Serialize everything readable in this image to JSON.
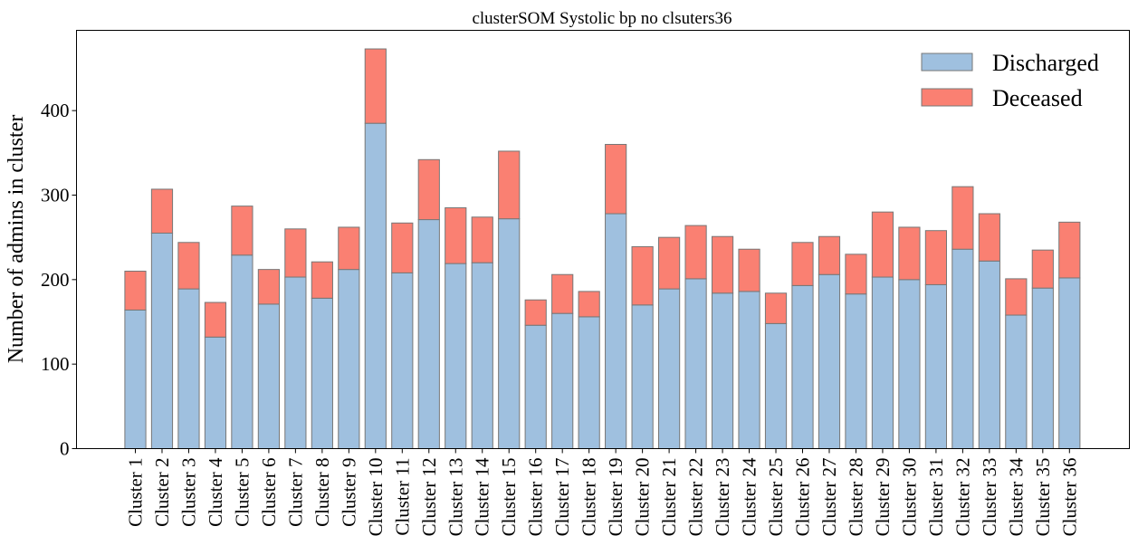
{
  "chart_data": {
    "type": "bar",
    "stacked": true,
    "title": "clusterSOM Systolic bp no clsuters36",
    "xlabel": "",
    "ylabel": "Number of admins in cluster",
    "ylim": [
      0,
      495
    ],
    "yticks": [
      0,
      100,
      200,
      300,
      400
    ],
    "grid": false,
    "legend_position": "top-right",
    "categories": [
      "Cluster 1",
      "Cluster 2",
      "Cluster 3",
      "Cluster 4",
      "Cluster 5",
      "Cluster 6",
      "Cluster 7",
      "Cluster 8",
      "Cluster 9",
      "Cluster 10",
      "Cluster 11",
      "Cluster 12",
      "Cluster 13",
      "Cluster 14",
      "Cluster 15",
      "Cluster 16",
      "Cluster 17",
      "Cluster 18",
      "Cluster 19",
      "Cluster 20",
      "Cluster 21",
      "Cluster 22",
      "Cluster 23",
      "Cluster 24",
      "Cluster 25",
      "Cluster 26",
      "Cluster 27",
      "Cluster 28",
      "Cluster 29",
      "Cluster 30",
      "Cluster 31",
      "Cluster 32",
      "Cluster 33",
      "Cluster 34",
      "Cluster 35",
      "Cluster 36"
    ],
    "series": [
      {
        "name": "Discharged",
        "color": "#9fc0df",
        "values": [
          164,
          255,
          189,
          132,
          229,
          171,
          203,
          178,
          212,
          385,
          208,
          271,
          219,
          220,
          272,
          146,
          160,
          156,
          278,
          170,
          189,
          201,
          184,
          186,
          148,
          193,
          206,
          183,
          203,
          200,
          194,
          236,
          222,
          158,
          190,
          202
        ]
      },
      {
        "name": "Deceased",
        "color": "#fa8072",
        "values": [
          46,
          52,
          55,
          41,
          58,
          41,
          57,
          43,
          50,
          88,
          59,
          71,
          66,
          54,
          80,
          30,
          46,
          30,
          82,
          69,
          61,
          63,
          67,
          50,
          36,
          51,
          45,
          47,
          77,
          62,
          64,
          74,
          56,
          43,
          45,
          66
        ]
      }
    ],
    "edge_color": "#777777"
  }
}
